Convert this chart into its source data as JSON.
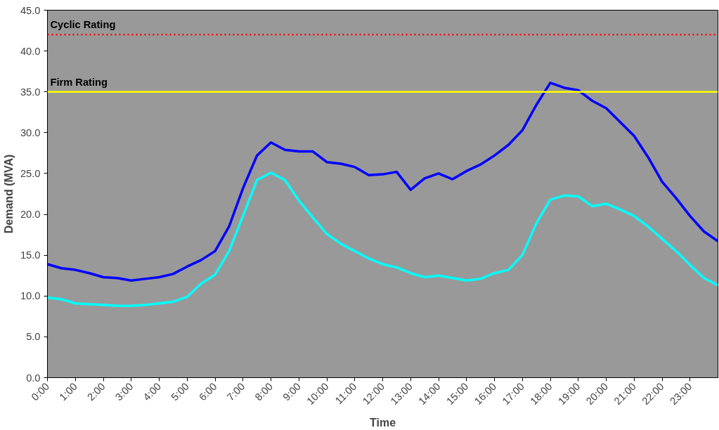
{
  "chart_data": {
    "type": "line",
    "xlabel": "Time",
    "ylabel": "Demand (MVA)",
    "x": [
      0,
      0.5,
      1,
      1.5,
      2,
      2.5,
      3,
      3.5,
      4,
      4.5,
      5,
      5.5,
      6,
      6.5,
      7,
      7.5,
      8,
      8.5,
      9,
      9.5,
      10,
      10.5,
      11,
      11.5,
      12,
      12.5,
      13,
      13.5,
      14,
      14.5,
      15,
      15.5,
      16,
      16.5,
      17,
      17.5,
      18,
      18.5,
      19,
      19.5,
      20,
      20.5,
      21,
      21.5,
      22,
      22.5,
      23,
      23.5,
      24
    ],
    "series": [
      {
        "color": "#0000ff",
        "values": [
          13.9,
          13.4,
          13.2,
          12.8,
          12.3,
          12.2,
          11.9,
          12.1,
          12.3,
          12.7,
          13.6,
          14.4,
          15.5,
          18.5,
          23.2,
          27.2,
          28.8,
          27.9,
          27.7,
          27.7,
          26.4,
          26.2,
          25.8,
          24.8,
          24.9,
          25.2,
          23.0,
          24.4,
          25.0,
          24.3,
          25.3,
          26.1,
          27.2,
          28.5,
          30.3,
          33.4,
          36.1,
          35.5,
          35.2,
          33.9,
          33.0,
          31.3,
          29.6,
          27.0,
          24.0,
          22.0,
          19.8,
          17.9,
          16.7
        ]
      },
      {
        "color": "#00ffff",
        "values": [
          9.8,
          9.6,
          9.1,
          9.0,
          8.9,
          8.8,
          8.8,
          8.9,
          9.1,
          9.3,
          9.9,
          11.5,
          12.6,
          15.5,
          19.8,
          24.2,
          25.1,
          24.2,
          21.7,
          19.6,
          17.6,
          16.4,
          15.5,
          14.6,
          13.9,
          13.5,
          12.8,
          12.3,
          12.5,
          12.2,
          11.9,
          12.1,
          12.8,
          13.2,
          15.0,
          18.9,
          21.8,
          22.3,
          22.2,
          21.0,
          21.3,
          20.6,
          19.8,
          18.5,
          17.0,
          15.5,
          13.8,
          12.2,
          11.3
        ]
      }
    ],
    "xlim": [
      0,
      24
    ],
    "xticks": [
      {
        "value": 0,
        "label": "0:00"
      },
      {
        "value": 1,
        "label": "1:00"
      },
      {
        "value": 2,
        "label": "2:00"
      },
      {
        "value": 3,
        "label": "3:00"
      },
      {
        "value": 4,
        "label": "4:00"
      },
      {
        "value": 5,
        "label": "5:00"
      },
      {
        "value": 6,
        "label": "6:00"
      },
      {
        "value": 7,
        "label": "7:00"
      },
      {
        "value": 8,
        "label": "8:00"
      },
      {
        "value": 9,
        "label": "9:00"
      },
      {
        "value": 10,
        "label": "10:00"
      },
      {
        "value": 11,
        "label": "11:00"
      },
      {
        "value": 12,
        "label": "12:00"
      },
      {
        "value": 13,
        "label": "13:00"
      },
      {
        "value": 14,
        "label": "14:00"
      },
      {
        "value": 15,
        "label": "15:00"
      },
      {
        "value": 16,
        "label": "16:00"
      },
      {
        "value": 17,
        "label": "17:00"
      },
      {
        "value": 18,
        "label": "18:00"
      },
      {
        "value": 19,
        "label": "19:00"
      },
      {
        "value": 20,
        "label": "20:00"
      },
      {
        "value": 21,
        "label": "21:00"
      },
      {
        "value": 22,
        "label": "22:00"
      },
      {
        "value": 23,
        "label": "23:00"
      }
    ],
    "ylim": [
      0,
      45
    ],
    "yticks": [
      {
        "value": 0,
        "label": "0.0"
      },
      {
        "value": 5,
        "label": "5.0"
      },
      {
        "value": 10,
        "label": "10.0"
      },
      {
        "value": 15,
        "label": "15.0"
      },
      {
        "value": 20,
        "label": "20.0"
      },
      {
        "value": 25,
        "label": "25.0"
      },
      {
        "value": 30,
        "label": "30.0"
      },
      {
        "value": 35,
        "label": "35.0"
      },
      {
        "value": 40,
        "label": "40.0"
      },
      {
        "value": 45,
        "label": "45.0"
      }
    ],
    "ref_lines": [
      {
        "axis": "y",
        "value": 42,
        "label": "Cyclic Rating",
        "color": "#ff0000",
        "line_style": "dotted"
      },
      {
        "axis": "y",
        "value": 35,
        "label": "Firm Rating",
        "color": "#ffff00",
        "line_style": "solid"
      }
    ],
    "grid": false,
    "marker": "none",
    "line_style": "solid"
  }
}
